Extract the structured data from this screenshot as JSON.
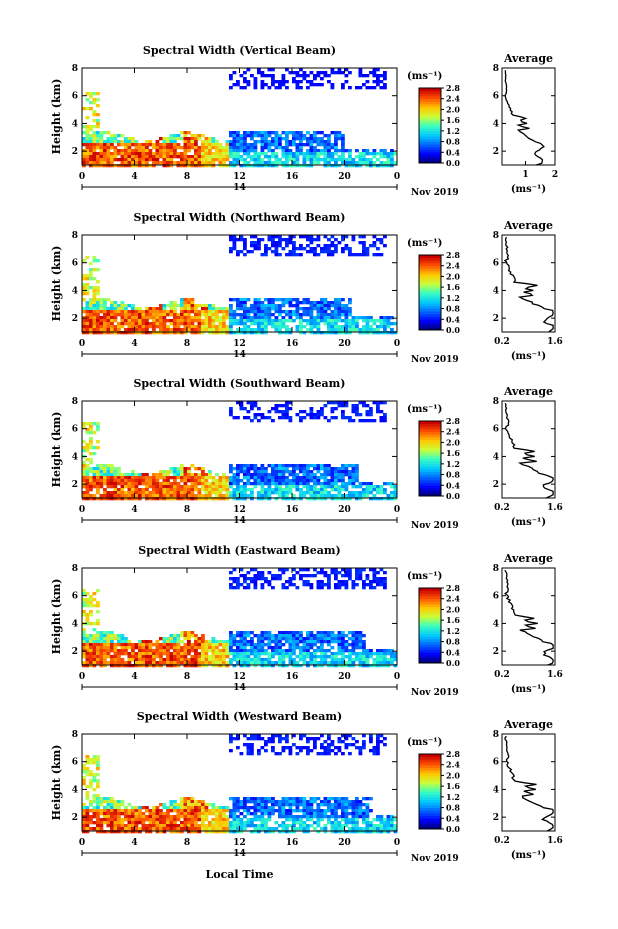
{
  "figure": {
    "xlabel_bottom": "Local Time"
  },
  "chart_data": [
    {
      "type": "heatmap",
      "title": "Spectral Width (Vertical Beam)",
      "ylabel": "Height (km)",
      "ylim": [
        1,
        8
      ],
      "yticks": [
        "2",
        "4",
        "6",
        "8"
      ],
      "xticks": [
        "0",
        "4",
        "8",
        "12",
        "16",
        "20",
        "0"
      ],
      "date_day": "14",
      "date_label": "Nov 2019",
      "colorbar": {
        "unit": "(ms⁻¹)",
        "ticks": [
          "0.0",
          "0.4",
          "0.8",
          "1.2",
          "1.6",
          "2.0",
          "2.4",
          "2.8"
        ]
      },
      "profile": {
        "title": "Average",
        "xlabel": "(ms⁻¹)",
        "xticks": [
          "1",
          "2"
        ],
        "xlim": [
          0.2,
          2.0
        ],
        "yticks": [
          "2",
          "4",
          "6",
          "8"
        ],
        "ylim": [
          1,
          8
        ]
      }
    },
    {
      "type": "heatmap",
      "title": "Spectral Width (Northward Beam)",
      "ylabel": "Height (km)",
      "ylim": [
        1,
        8
      ],
      "yticks": [
        "2",
        "4",
        "6",
        "8"
      ],
      "xticks": [
        "0",
        "4",
        "8",
        "12",
        "16",
        "20",
        "0"
      ],
      "date_day": "14",
      "date_label": "Nov 2019",
      "colorbar": {
        "unit": "(ms⁻¹)",
        "ticks": [
          "0.0",
          "0.4",
          "0.8",
          "1.2",
          "1.6",
          "2.0",
          "2.4",
          "2.8"
        ]
      },
      "profile": {
        "title": "Average",
        "xlabel": "(ms⁻¹)",
        "xticks": [
          "0.2",
          "1.6"
        ],
        "xlim": [
          0.2,
          1.6
        ],
        "yticks": [
          "2",
          "4",
          "6",
          "8"
        ],
        "ylim": [
          1,
          8
        ]
      }
    },
    {
      "type": "heatmap",
      "title": "Spectral Width (Southward Beam)",
      "ylabel": "Height (km)",
      "ylim": [
        1,
        8
      ],
      "yticks": [
        "2",
        "4",
        "6",
        "8"
      ],
      "xticks": [
        "0",
        "4",
        "8",
        "12",
        "16",
        "20",
        "0"
      ],
      "date_day": "14",
      "date_label": "Nov 2019",
      "colorbar": {
        "unit": "(ms⁻¹)",
        "ticks": [
          "0.0",
          "0.4",
          "0.8",
          "1.2",
          "1.6",
          "2.0",
          "2.4",
          "2.8"
        ]
      },
      "profile": {
        "title": "Average",
        "xlabel": "(ms⁻¹)",
        "xticks": [
          "0.2",
          "1.6"
        ],
        "xlim": [
          0.2,
          1.6
        ],
        "yticks": [
          "2",
          "4",
          "6",
          "8"
        ],
        "ylim": [
          1,
          8
        ]
      }
    },
    {
      "type": "heatmap",
      "title": "Spectral Width (Eastward Beam)",
      "ylabel": "Height (km)",
      "ylim": [
        1,
        8
      ],
      "yticks": [
        "2",
        "4",
        "6",
        "8"
      ],
      "xticks": [
        "0",
        "4",
        "8",
        "12",
        "16",
        "20",
        "0"
      ],
      "date_day": "14",
      "date_label": "Nov 2019",
      "colorbar": {
        "unit": "(ms⁻¹)",
        "ticks": [
          "0.0",
          "0.4",
          "0.8",
          "1.2",
          "1.6",
          "2.0",
          "2.4",
          "2.8"
        ]
      },
      "profile": {
        "title": "Average",
        "xlabel": "(ms⁻¹)",
        "xticks": [
          "0.2",
          "1.6"
        ],
        "xlim": [
          0.2,
          1.6
        ],
        "yticks": [
          "2",
          "4",
          "6",
          "8"
        ],
        "ylim": [
          1,
          8
        ]
      }
    },
    {
      "type": "heatmap",
      "title": "Spectral Width (Westward Beam)",
      "ylabel": "Height (km)",
      "ylim": [
        1,
        8
      ],
      "yticks": [
        "2",
        "4",
        "6",
        "8"
      ],
      "xticks": [
        "0",
        "4",
        "8",
        "12",
        "16",
        "20",
        "0"
      ],
      "date_day": "14",
      "date_label": "Nov 2019",
      "colorbar": {
        "unit": "(ms⁻¹)",
        "ticks": [
          "0.0",
          "0.4",
          "0.8",
          "1.2",
          "1.6",
          "2.0",
          "2.4",
          "2.8"
        ]
      },
      "profile": {
        "title": "Average",
        "xlabel": "(ms⁻¹)",
        "xticks": [
          "0.2",
          "1.6"
        ],
        "xlim": [
          0.2,
          1.6
        ],
        "yticks": [
          "2",
          "4",
          "6",
          "8"
        ],
        "ylim": [
          1,
          8
        ]
      }
    }
  ]
}
